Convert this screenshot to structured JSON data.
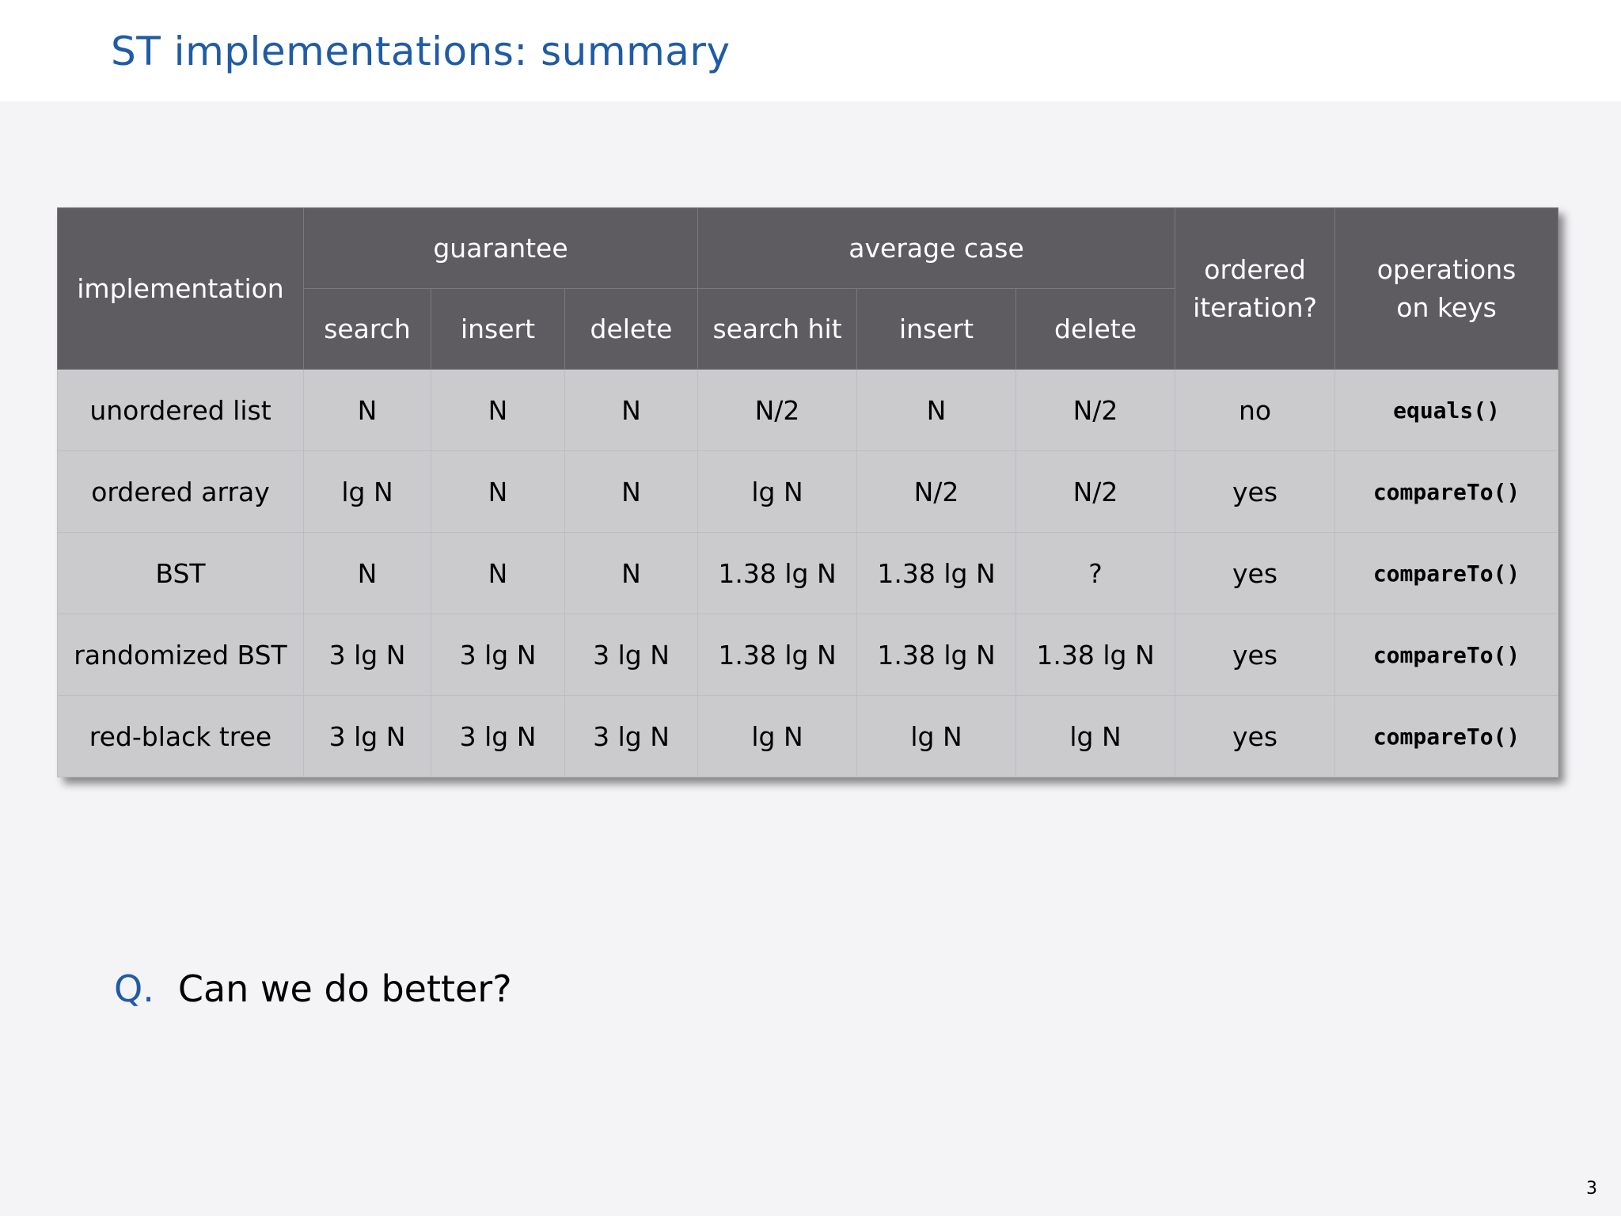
{
  "slide": {
    "title": "ST implementations:  summary",
    "page_number": "3"
  },
  "table": {
    "headers": {
      "implementation": "implementation",
      "guarantee": "guarantee",
      "average_case": "average case",
      "ordered_iteration": "ordered iteration?",
      "operations_on_keys": "operations on keys",
      "guarantee_sub": [
        "search",
        "insert",
        "delete"
      ],
      "average_sub": [
        "search hit",
        "insert",
        "delete"
      ]
    },
    "rows": [
      {
        "impl": "unordered list",
        "g_search": "N",
        "g_insert": "N",
        "g_delete": "N",
        "a_search": "N/2",
        "a_insert": "N",
        "a_delete": "N/2",
        "ordered": "no",
        "ops": "equals()"
      },
      {
        "impl": "ordered array",
        "g_search": "lg N",
        "g_insert": "N",
        "g_delete": "N",
        "a_search": "lg N",
        "a_insert": "N/2",
        "a_delete": "N/2",
        "ordered": "yes",
        "ops": "compareTo()"
      },
      {
        "impl": "BST",
        "g_search": "N",
        "g_insert": "N",
        "g_delete": "N",
        "a_search": "1.38 lg N",
        "a_insert": "1.38 lg N",
        "a_delete": "?",
        "ordered": "yes",
        "ops": "compareTo()"
      },
      {
        "impl": "randomized BST",
        "g_search": "3 lg N",
        "g_insert": "3 lg N",
        "g_delete": "3 lg N",
        "a_search": "1.38 lg N",
        "a_insert": "1.38 lg N",
        "a_delete": "1.38 lg N",
        "ordered": "yes",
        "ops": "compareTo()"
      },
      {
        "impl": "red-black tree",
        "g_search": "3 lg N",
        "g_insert": "3 lg N",
        "g_delete": "3 lg N",
        "a_search": "lg N",
        "a_insert": "lg N",
        "a_delete": "lg N",
        "ordered": "yes",
        "ops": "compareTo()"
      }
    ]
  },
  "question": {
    "label": "Q.",
    "text": "Can we do better?"
  }
}
